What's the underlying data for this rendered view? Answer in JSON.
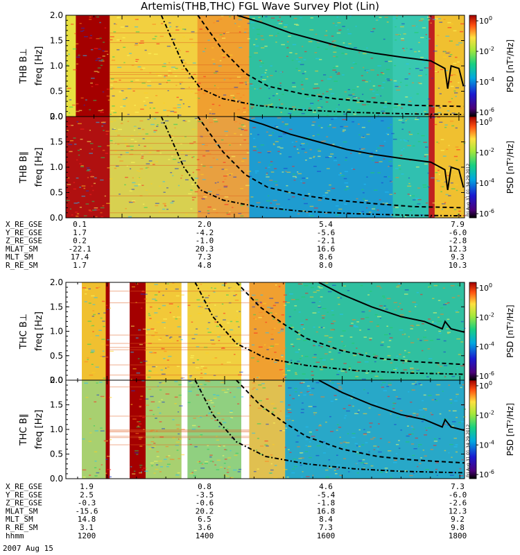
{
  "title": "Artemis(THB,THC) FGL Wave Survey Plot (Lin)",
  "colors": {
    "low": "#2a0aa8",
    "mid": "#1fd36a",
    "high": "#ffff66",
    "sat": "#a40000",
    "curve": "#000000"
  },
  "chart_data": [
    {
      "type": "heatmap",
      "probe": "THB",
      "ylabel": "THB B⊥",
      "yunit": "freq [Hz]",
      "ylim": [
        0,
        2
      ],
      "yticks": [
        "0.0",
        "0.5",
        "1.0",
        "1.5",
        "2.0"
      ],
      "zlabel": "PSD [nT²/Hz]",
      "ztick_exponents": [
        "0",
        "-2",
        "-4",
        "-6"
      ],
      "xlim": [
        1100,
        1810
      ],
      "solid_curve": [
        [
          1405,
          2.0
        ],
        [
          1450,
          1.85
        ],
        [
          1500,
          1.65
        ],
        [
          1550,
          1.5
        ],
        [
          1600,
          1.35
        ],
        [
          1650,
          1.25
        ],
        [
          1700,
          1.17
        ],
        [
          1750,
          1.1
        ],
        [
          1775,
          0.95
        ],
        [
          1780,
          0.55
        ],
        [
          1786,
          1.0
        ],
        [
          1800,
          0.95
        ],
        [
          1808,
          0.6
        ]
      ],
      "dashed_curve": [
        [
          1335,
          2.0
        ],
        [
          1380,
          1.3
        ],
        [
          1420,
          0.85
        ],
        [
          1460,
          0.6
        ],
        [
          1520,
          0.45
        ],
        [
          1580,
          0.35
        ],
        [
          1650,
          0.28
        ],
        [
          1720,
          0.22
        ],
        [
          1808,
          0.2
        ]
      ],
      "dashdot_curve": [
        [
          1270,
          2.0
        ],
        [
          1310,
          1.0
        ],
        [
          1340,
          0.55
        ],
        [
          1380,
          0.35
        ],
        [
          1440,
          0.22
        ],
        [
          1520,
          0.13
        ],
        [
          1620,
          0.08
        ],
        [
          1720,
          0.05
        ],
        [
          1808,
          0.04
        ]
      ]
    },
    {
      "type": "heatmap",
      "probe": "THB",
      "ylabel": "THB B∥",
      "yunit": "freq [Hz]",
      "ylim": [
        0,
        2
      ],
      "yticks": [
        "0.0",
        "0.5",
        "1.0",
        "1.5",
        "2.0"
      ],
      "zlabel": "PSD [nT²/Hz]",
      "ztick_exponents": [
        "0",
        "-2",
        "-4",
        "-6"
      ],
      "side_label": "Fri Aug 31 01:34:29 2012",
      "xlim": [
        1100,
        1810
      ],
      "solid_curve": [
        [
          1405,
          2.0
        ],
        [
          1450,
          1.85
        ],
        [
          1500,
          1.65
        ],
        [
          1550,
          1.5
        ],
        [
          1600,
          1.35
        ],
        [
          1650,
          1.25
        ],
        [
          1700,
          1.17
        ],
        [
          1750,
          1.1
        ],
        [
          1775,
          0.95
        ],
        [
          1780,
          0.55
        ],
        [
          1786,
          1.0
        ],
        [
          1800,
          0.95
        ],
        [
          1808,
          0.6
        ]
      ],
      "dashed_curve": [
        [
          1335,
          2.0
        ],
        [
          1380,
          1.3
        ],
        [
          1420,
          0.85
        ],
        [
          1460,
          0.6
        ],
        [
          1520,
          0.45
        ],
        [
          1580,
          0.35
        ],
        [
          1650,
          0.28
        ],
        [
          1720,
          0.22
        ],
        [
          1808,
          0.2
        ]
      ],
      "dashdot_curve": [
        [
          1270,
          2.0
        ],
        [
          1310,
          1.0
        ],
        [
          1340,
          0.55
        ],
        [
          1380,
          0.35
        ],
        [
          1440,
          0.22
        ],
        [
          1520,
          0.13
        ],
        [
          1620,
          0.08
        ],
        [
          1720,
          0.05
        ],
        [
          1808,
          0.04
        ]
      ]
    },
    {
      "type": "heatmap",
      "probe": "THC",
      "ylabel": "THC B⊥",
      "yunit": "freq [Hz]",
      "ylim": [
        0,
        2
      ],
      "yticks": [
        "0.0",
        "0.5",
        "1.0",
        "1.5",
        "2.0"
      ],
      "zlabel": "PSD [nT²/Hz]",
      "ztick_exponents": [
        "0",
        "-2",
        "-4",
        "-6"
      ],
      "xlim": [
        1130,
        1808
      ],
      "solid_curve": [
        [
          1560,
          2.0
        ],
        [
          1600,
          1.75
        ],
        [
          1650,
          1.5
        ],
        [
          1700,
          1.3
        ],
        [
          1740,
          1.2
        ],
        [
          1770,
          1.05
        ],
        [
          1775,
          1.2
        ],
        [
          1785,
          1.05
        ],
        [
          1808,
          0.98
        ]
      ],
      "dashed_curve": [
        [
          1420,
          2.0
        ],
        [
          1460,
          1.5
        ],
        [
          1500,
          1.15
        ],
        [
          1540,
          0.85
        ],
        [
          1600,
          0.6
        ],
        [
          1660,
          0.45
        ],
        [
          1720,
          0.38
        ],
        [
          1808,
          0.32
        ]
      ],
      "dashdot_curve": [
        [
          1350,
          2.0
        ],
        [
          1380,
          1.3
        ],
        [
          1420,
          0.75
        ],
        [
          1470,
          0.45
        ],
        [
          1540,
          0.3
        ],
        [
          1620,
          0.2
        ],
        [
          1700,
          0.15
        ],
        [
          1808,
          0.12
        ]
      ]
    },
    {
      "type": "heatmap",
      "probe": "THC",
      "ylabel": "THC B∥",
      "yunit": "freq [Hz]",
      "ylim": [
        0,
        2
      ],
      "yticks": [
        "0.0",
        "0.5",
        "1.0",
        "1.5",
        "2.0"
      ],
      "zlabel": "PSD [nT²/Hz]",
      "ztick_exponents": [
        "0",
        "-2",
        "-4",
        "-6"
      ],
      "side_label": "Fri Aug 31 01:34:29 2012",
      "xlim": [
        1130,
        1808
      ],
      "solid_curve": [
        [
          1560,
          2.0
        ],
        [
          1600,
          1.75
        ],
        [
          1650,
          1.5
        ],
        [
          1700,
          1.3
        ],
        [
          1740,
          1.2
        ],
        [
          1770,
          1.05
        ],
        [
          1775,
          1.2
        ],
        [
          1785,
          1.05
        ],
        [
          1808,
          0.98
        ]
      ],
      "dashed_curve": [
        [
          1420,
          2.0
        ],
        [
          1460,
          1.5
        ],
        [
          1500,
          1.15
        ],
        [
          1540,
          0.85
        ],
        [
          1600,
          0.6
        ],
        [
          1660,
          0.45
        ],
        [
          1720,
          0.38
        ],
        [
          1808,
          0.32
        ]
      ],
      "dashdot_curve": [
        [
          1350,
          2.0
        ],
        [
          1380,
          1.3
        ],
        [
          1420,
          0.75
        ],
        [
          1470,
          0.45
        ],
        [
          1540,
          0.3
        ],
        [
          1620,
          0.2
        ],
        [
          1700,
          0.15
        ],
        [
          1808,
          0.12
        ]
      ]
    }
  ],
  "ephemeris": [
    {
      "labels": [
        "X_RE_GSE",
        "Y_RE_GSE",
        "Z_RE_GSE",
        "MLAT_SM",
        "MLT_SM",
        "R_RE_SM"
      ],
      "columns": [
        [
          "0.1",
          "1.7",
          "0.2",
          "-22.1",
          "17.4",
          "1.7"
        ],
        [
          "2.0",
          "-4.2",
          "-1.0",
          "20.3",
          "7.3",
          "4.8"
        ],
        [
          "5.4",
          "-5.6",
          "-2.1",
          "16.6",
          "8.6",
          "8.0"
        ],
        [
          "7.9",
          "-6.0",
          "-2.8",
          "12.3",
          "9.3",
          "10.3"
        ]
      ]
    },
    {
      "labels": [
        "X_RE_GSE",
        "Y_RE_GSE",
        "Z_RE_GSE",
        "MLAT_SM",
        "MLT_SM",
        "R_RE_SM",
        "hhmm"
      ],
      "columns": [
        [
          "1.9",
          "2.5",
          "-0.3",
          "-15.6",
          "14.8",
          "3.1",
          "1200"
        ],
        [
          "0.8",
          "-3.5",
          "-0.6",
          "20.2",
          "6.5",
          "3.6",
          "1400"
        ],
        [
          "4.6",
          "-5.4",
          "-1.8",
          "16.8",
          "8.4",
          "7.3",
          "1600"
        ],
        [
          "7.3",
          "-6.0",
          "-2.6",
          "12.3",
          "9.2",
          "9.8",
          "1800"
        ]
      ]
    }
  ],
  "date_label": "2007 Aug 15"
}
